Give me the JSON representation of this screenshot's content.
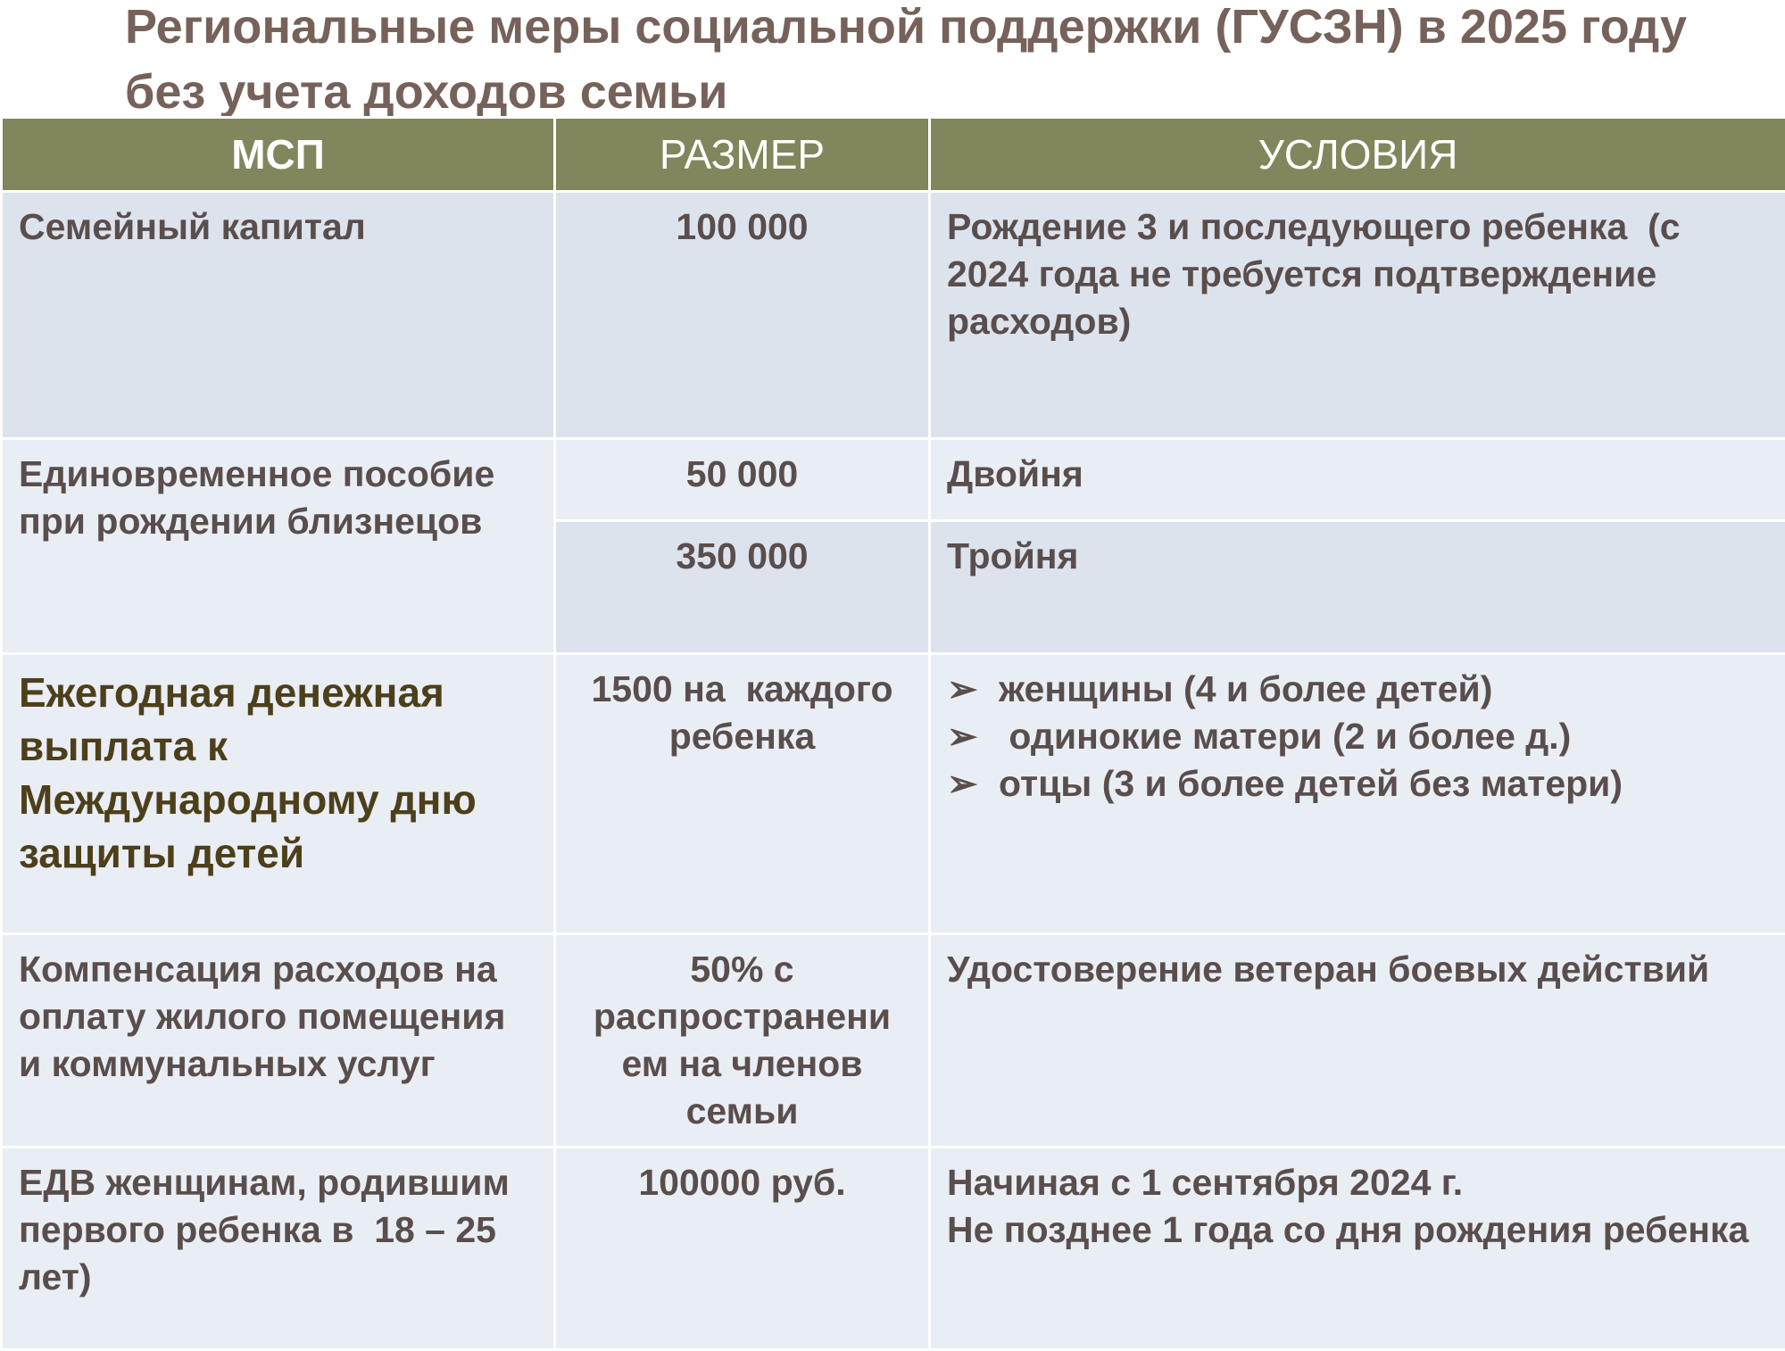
{
  "title": "Региональные меры социальной поддержки (ГУСЗН) в 2025 году без учета доходов семьи",
  "headers": [
    "МСП",
    "РАЗМЕР",
    "УСЛОВИЯ"
  ],
  "rows": [
    {
      "measure": "Семейный капитал",
      "size": "100 000",
      "conditions": "Рождение 3 и последующего ребенка  (с 2024 года не требуется подтверждение расходов)"
    },
    {
      "measure": "Единовременное пособие при рождении близнецов",
      "sub": [
        {
          "size": "50 000",
          "conditions": "Двойня"
        },
        {
          "size": "350 000",
          "conditions": "Тройня"
        }
      ]
    },
    {
      "measure": "Ежегодная денежная выплата к Международному дню защиты детей",
      "size": "1500 на  каждого ребенка",
      "conditions_list": [
        "женщины (4 и более детей)",
        " одинокие матери (2 и более д.)",
        "отцы (3 и более детей без матери)"
      ],
      "bullet_icon": "arrow-bullet-icon"
    },
    {
      "measure": "Компенсация расходов на оплату жилого помещения и коммунальных услуг",
      "size": "50% с распространени ем на членов семьи",
      "conditions": "Удостоверение ветеран боевых действий"
    },
    {
      "measure": "ЕДВ женщинам, родившим первого ребенка в  18 – 25 лет)",
      "size": "100000 руб.",
      "conditions_lines": [
        "Начиная с 1 сентября 2024 г.",
        "Не позднее 1 года со дня рождения ребенка"
      ]
    }
  ],
  "colors": {
    "header_bg": "#81865c",
    "row_dark": "#dce3ed",
    "row_light": "#e9eef5",
    "title": "#76625a"
  }
}
